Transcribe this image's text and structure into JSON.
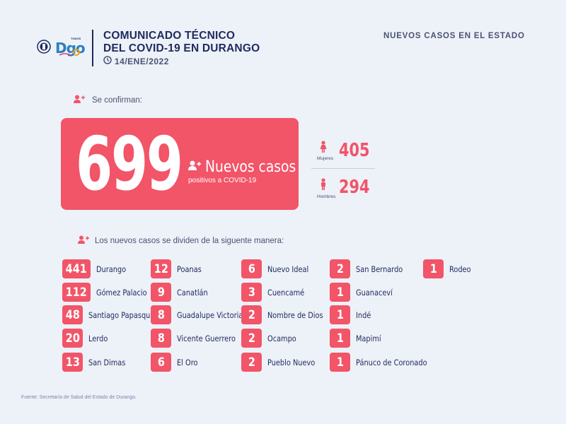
{
  "header": {
    "logo_text": "Dgo",
    "logo_small": "TODOS",
    "title_line1": "COMUNICADO TÉCNICO",
    "title_line2": "DEL COVID-19 EN DURANGO",
    "date": "14/ENE/2022",
    "right_title": "NUEVOS CASOS EN EL ESTADO"
  },
  "confirm_label": "Se confirman:",
  "main": {
    "total": "699",
    "title": "Nuevos casos",
    "subtitle": "positivos a COVID-19"
  },
  "gender": {
    "women_label": "Mujeres",
    "women_count": "405",
    "men_label": "Hombres",
    "men_count": "294"
  },
  "divide_label": "Los nuevos casos se dividen de la siguente manera:",
  "municipalities": [
    [
      {
        "count": "441",
        "name": "Durango"
      },
      {
        "count": "112",
        "name": "Gómez Palacio"
      },
      {
        "count": "48",
        "name": "Santiago Papasquiaro"
      },
      {
        "count": "20",
        "name": "Lerdo"
      },
      {
        "count": "13",
        "name": "San Dimas"
      }
    ],
    [
      {
        "count": "12",
        "name": "Poanas"
      },
      {
        "count": "9",
        "name": "Canatlán"
      },
      {
        "count": "8",
        "name": "Guadalupe Victoria"
      },
      {
        "count": "8",
        "name": "Vicente Guerrero"
      },
      {
        "count": "6",
        "name": "El Oro"
      }
    ],
    [
      {
        "count": "6",
        "name": "Nuevo Ideal"
      },
      {
        "count": "3",
        "name": "Cuencamé"
      },
      {
        "count": "2",
        "name": "Nombre de Dios"
      },
      {
        "count": "2",
        "name": "Ocampo"
      },
      {
        "count": "2",
        "name": "Pueblo Nuevo"
      }
    ],
    [
      {
        "count": "2",
        "name": "San Bernardo"
      },
      {
        "count": "1",
        "name": "Guanaceví"
      },
      {
        "count": "1",
        "name": "Indé"
      },
      {
        "count": "1",
        "name": "Mapimí"
      },
      {
        "count": "1",
        "name": "Pánuco de Coronado"
      }
    ],
    [
      {
        "count": "1",
        "name": "Rodeo"
      }
    ]
  ],
  "footer": "Fuente: Secretaría de Salud del Estado de Durango.",
  "colors": {
    "accent": "#f25468",
    "navy": "#1f2a5c",
    "background": "#edf1f8"
  }
}
